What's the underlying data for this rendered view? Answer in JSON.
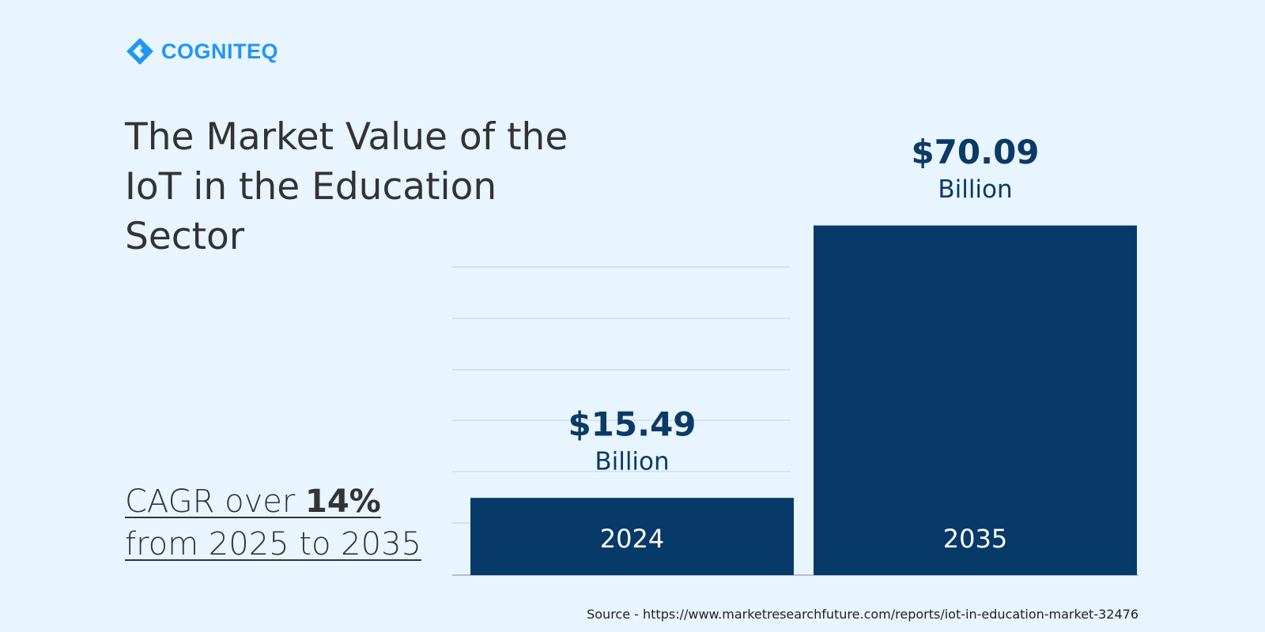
{
  "brand": "COGNITEQ",
  "chart_data": {
    "type": "bar",
    "title": "The Market Value of the IoT in the Education Sector",
    "categories": [
      "2024",
      "2035"
    ],
    "values": [
      15.49,
      70.09
    ],
    "value_labels": [
      "$15.49",
      "$70.09"
    ],
    "value_unit": "Billion",
    "color": "#073a69",
    "ylim": [
      0,
      70
    ],
    "annotation": [
      "CAGR over",
      "14%",
      "from 2025 to 2035"
    ],
    "source": "Source - https://www.marketresearchfuture.com/reports/iot-in-education-market-32476"
  }
}
